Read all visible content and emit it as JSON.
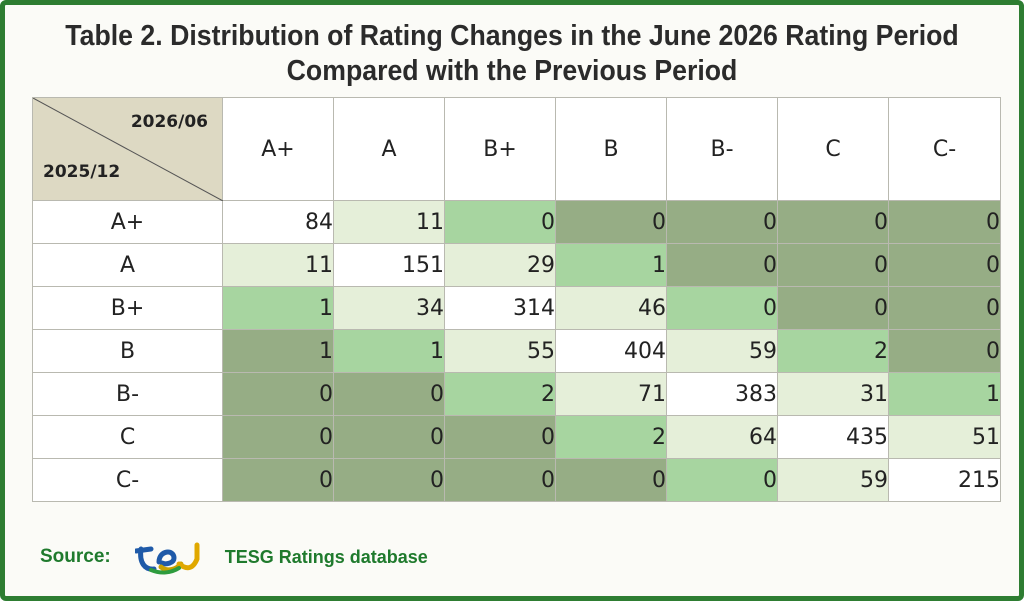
{
  "title": {
    "line1": "Table 2. Distribution of Rating Changes in the June 2026 Rating Period",
    "line2": "Compared with the Previous Period"
  },
  "corner": {
    "column_axis_label": "2026/06",
    "row_axis_label": "2025/12"
  },
  "chart_data": {
    "type": "table",
    "title": "Table 2. Distribution of Rating Changes in the June 2026 Rating Period Compared with the Previous Period",
    "columns": [
      "A+",
      "A",
      "B+",
      "B",
      "B-",
      "C",
      "C-"
    ],
    "rows": [
      {
        "label": "A+",
        "values": [
          84,
          11,
          0,
          0,
          0,
          0,
          0
        ]
      },
      {
        "label": "A",
        "values": [
          11,
          151,
          29,
          1,
          0,
          0,
          0
        ]
      },
      {
        "label": "B+",
        "values": [
          1,
          34,
          314,
          46,
          0,
          0,
          0
        ]
      },
      {
        "label": "B",
        "values": [
          1,
          1,
          55,
          404,
          59,
          2,
          0
        ]
      },
      {
        "label": "B-",
        "values": [
          0,
          0,
          2,
          71,
          383,
          31,
          1
        ]
      },
      {
        "label": "C",
        "values": [
          0,
          0,
          0,
          2,
          64,
          435,
          51
        ]
      },
      {
        "label": "C-",
        "values": [
          0,
          0,
          0,
          0,
          0,
          59,
          215
        ]
      }
    ],
    "colors": {
      "diagonal": "#ffffff",
      "one_step": "#e5efd9",
      "two_steps": "#a7d5a0",
      "three_or_more_steps": "#96ad85",
      "corner": "#ddd9c3"
    }
  },
  "source": {
    "label": "Source:",
    "logo_icon": "tej-logo-icon",
    "name": "TESG Ratings database"
  }
}
